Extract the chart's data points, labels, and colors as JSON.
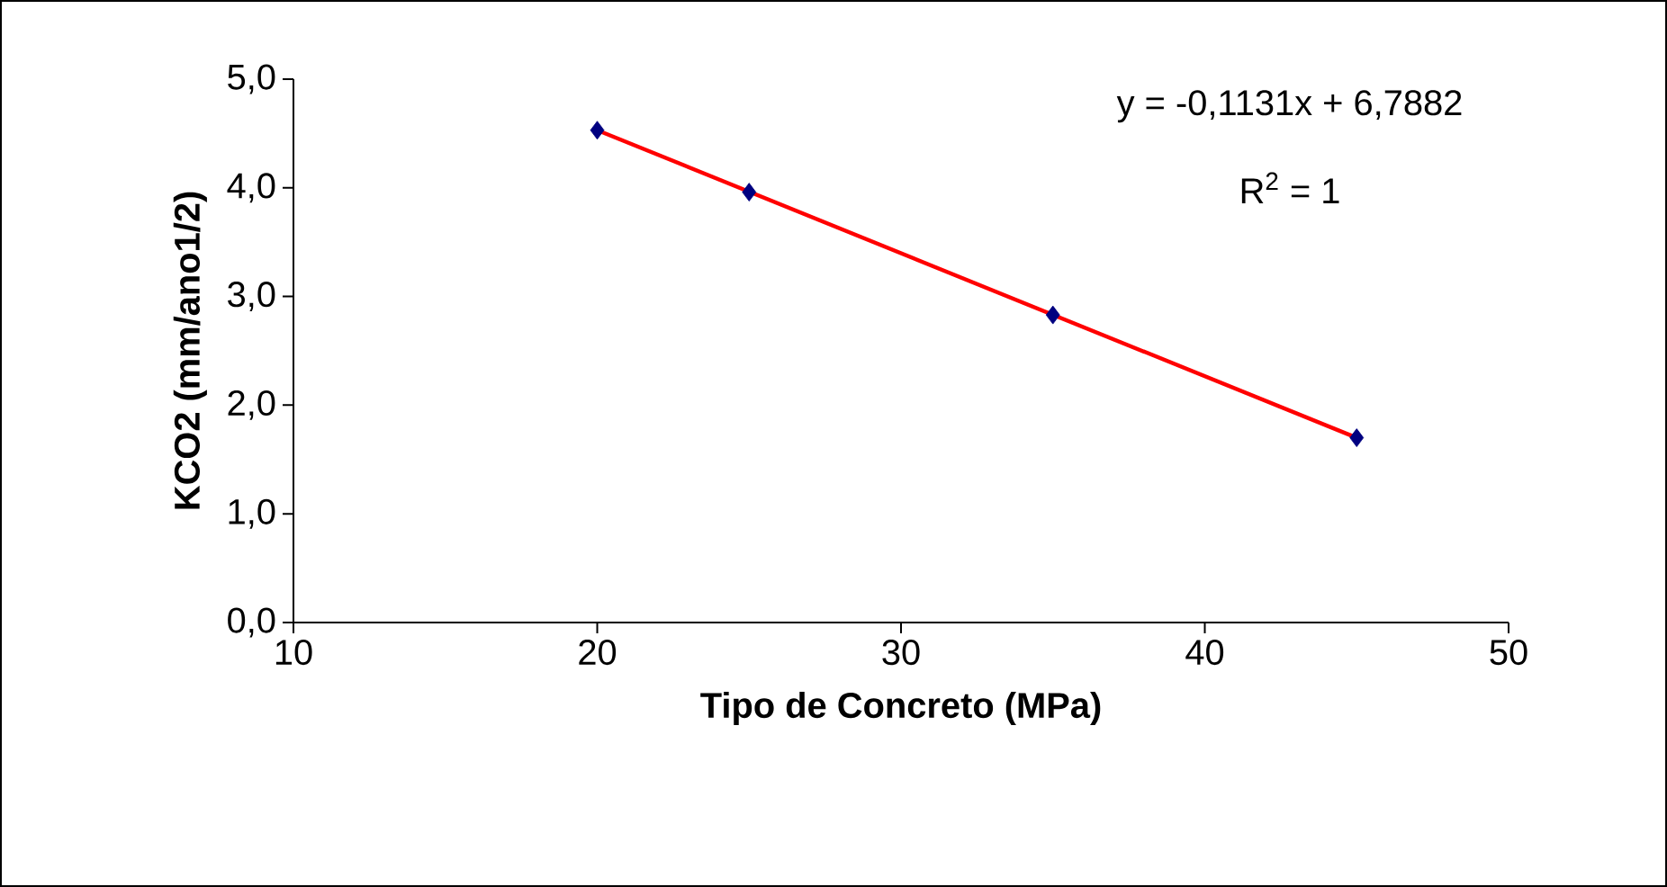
{
  "chart_data": {
    "type": "scatter",
    "xlabel": "Tipo de Concreto (MPa)",
    "ylabel": "KCO2 (mm/ano1/2)",
    "x": [
      20,
      25,
      35,
      45
    ],
    "series": [
      {
        "color": "#000080",
        "marker": "diamond",
        "values": [
          4.53,
          3.96,
          2.83,
          1.7
        ]
      },
      {
        "type": "line",
        "color": "#ff0000",
        "marker": "none",
        "x": [
          20,
          45
        ],
        "values": [
          4.53,
          1.7
        ]
      }
    ],
    "xlim": [
      10,
      50
    ],
    "xticks": [
      10,
      20,
      30,
      40,
      50
    ],
    "ylim": [
      0,
      5
    ],
    "yticks": [
      {
        "value": 0,
        "label": "0,0"
      },
      {
        "value": 1,
        "label": "1,0"
      },
      {
        "value": 2,
        "label": "2,0"
      },
      {
        "value": 3,
        "label": "3,0"
      },
      {
        "value": 4,
        "label": "4,0"
      },
      {
        "value": 5,
        "label": "5,0"
      }
    ],
    "annotations": [
      "y = -0,1131x + 6,7882",
      "R$^{2}$ = 1"
    ],
    "grid": false
  }
}
